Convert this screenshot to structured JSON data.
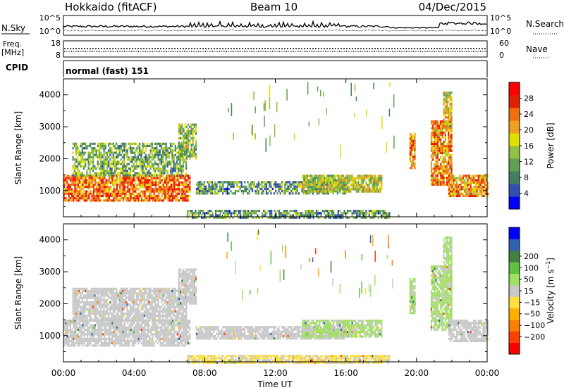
{
  "header": {
    "station": "Hokkaido (fitACF)",
    "beam": "Beam 10",
    "date": "04/Dec/2015"
  },
  "nsky_panel": {
    "left_label": "N.Sky",
    "right_label": "N.Search",
    "left_ticks": [
      "10^5",
      "10^0"
    ],
    "right_ticks": [
      "10^5",
      "10^0"
    ]
  },
  "freq_panel": {
    "left_label_line1": "Freq.",
    "left_label_line2": "[MHz]",
    "right_label": "Nave",
    "left_ticks": [
      "18",
      "8"
    ],
    "right_ticks": [
      "60",
      "0"
    ]
  },
  "cpid_panel": {
    "label": "CPID",
    "value": "normal (fast) 151"
  },
  "chart_data": [
    {
      "type": "heatmap",
      "title": "",
      "ylabel": "Slant Range [km]",
      "xlabel": "",
      "xlim": [
        0,
        24
      ],
      "ylim": [
        180,
        4500
      ],
      "yticks": [
        1000,
        2000,
        3000,
        4000
      ],
      "colorbar": {
        "label": "Power [dB]",
        "range": [
          0,
          32
        ],
        "ticks": [
          4,
          8,
          12,
          16,
          20,
          24,
          28
        ],
        "colors": [
          "#0000ff",
          "#3050b0",
          "#408060",
          "#60a050",
          "#90c040",
          "#e0e000",
          "#f0a020",
          "#f07010",
          "#e02000",
          "#ff0000"
        ]
      },
      "regions": [
        {
          "t0": 0.0,
          "t1": 7.2,
          "r0": 700,
          "r1": 1500,
          "level": 24
        },
        {
          "t0": 0.5,
          "t1": 7.0,
          "r0": 1500,
          "r1": 2500,
          "level": 12
        },
        {
          "t0": 6.5,
          "t1": 7.5,
          "r0": 2000,
          "r1": 3100,
          "level": 14
        },
        {
          "t0": 7.0,
          "t1": 18.5,
          "r0": 180,
          "r1": 400,
          "level": 10
        },
        {
          "t0": 7.5,
          "t1": 16.0,
          "r0": 900,
          "r1": 1300,
          "level": 10
        },
        {
          "t0": 13.5,
          "t1": 18.0,
          "r0": 1000,
          "r1": 1500,
          "level": 16
        },
        {
          "t0": 19.6,
          "t1": 19.9,
          "r0": 1700,
          "r1": 2800,
          "level": 22
        },
        {
          "t0": 20.8,
          "t1": 22.0,
          "r0": 1200,
          "r1": 3200,
          "level": 22
        },
        {
          "t0": 21.8,
          "t1": 24.0,
          "r0": 800,
          "r1": 1500,
          "level": 22
        },
        {
          "t0": 21.5,
          "t1": 22.0,
          "r0": 3000,
          "r1": 4100,
          "level": 18
        }
      ]
    },
    {
      "type": "heatmap",
      "title": "",
      "ylabel": "Slant Range [km]",
      "xlabel": "Time UT",
      "xlim": [
        0,
        24
      ],
      "ylim": [
        180,
        4500
      ],
      "yticks": [
        1000,
        2000,
        3000,
        4000
      ],
      "xticks": [
        "00:00",
        "04:00",
        "08:00",
        "12:00",
        "16:00",
        "20:00",
        "00:00"
      ],
      "colorbar": {
        "label": "Velocity [m s^-1]",
        "range": [
          -250,
          250
        ],
        "ticks": [
          -200,
          -100,
          -50,
          -15,
          15,
          50,
          100,
          200
        ],
        "colors": [
          "#ff0000",
          "#ff4000",
          "#ff8000",
          "#ffb000",
          "#ffe040",
          "#c8c8c8",
          "#a0e060",
          "#60c040",
          "#408040",
          "#3060b0",
          "#0000ff"
        ]
      },
      "regions": [
        {
          "t0": 0.0,
          "t1": 7.2,
          "r0": 700,
          "r1": 1500,
          "level": 0
        },
        {
          "t0": 0.5,
          "t1": 7.0,
          "r0": 1500,
          "r1": 2500,
          "level": 0
        },
        {
          "t0": 6.5,
          "t1": 7.5,
          "r0": 2000,
          "r1": 3100,
          "level": 0
        },
        {
          "t0": 7.0,
          "t1": 18.5,
          "r0": 180,
          "r1": 400,
          "level": -30
        },
        {
          "t0": 7.5,
          "t1": 16.0,
          "r0": 900,
          "r1": 1300,
          "level": 0
        },
        {
          "t0": 13.5,
          "t1": 18.0,
          "r0": 1000,
          "r1": 1500,
          "level": 30
        },
        {
          "t0": 19.6,
          "t1": 19.9,
          "r0": 1700,
          "r1": 2800,
          "level": 30
        },
        {
          "t0": 20.8,
          "t1": 22.0,
          "r0": 1200,
          "r1": 3200,
          "level": 30
        },
        {
          "t0": 21.8,
          "t1": 24.0,
          "r0": 800,
          "r1": 1500,
          "level": 0
        },
        {
          "t0": 21.5,
          "t1": 22.0,
          "r0": 3000,
          "r1": 4100,
          "level": 30
        }
      ]
    }
  ]
}
